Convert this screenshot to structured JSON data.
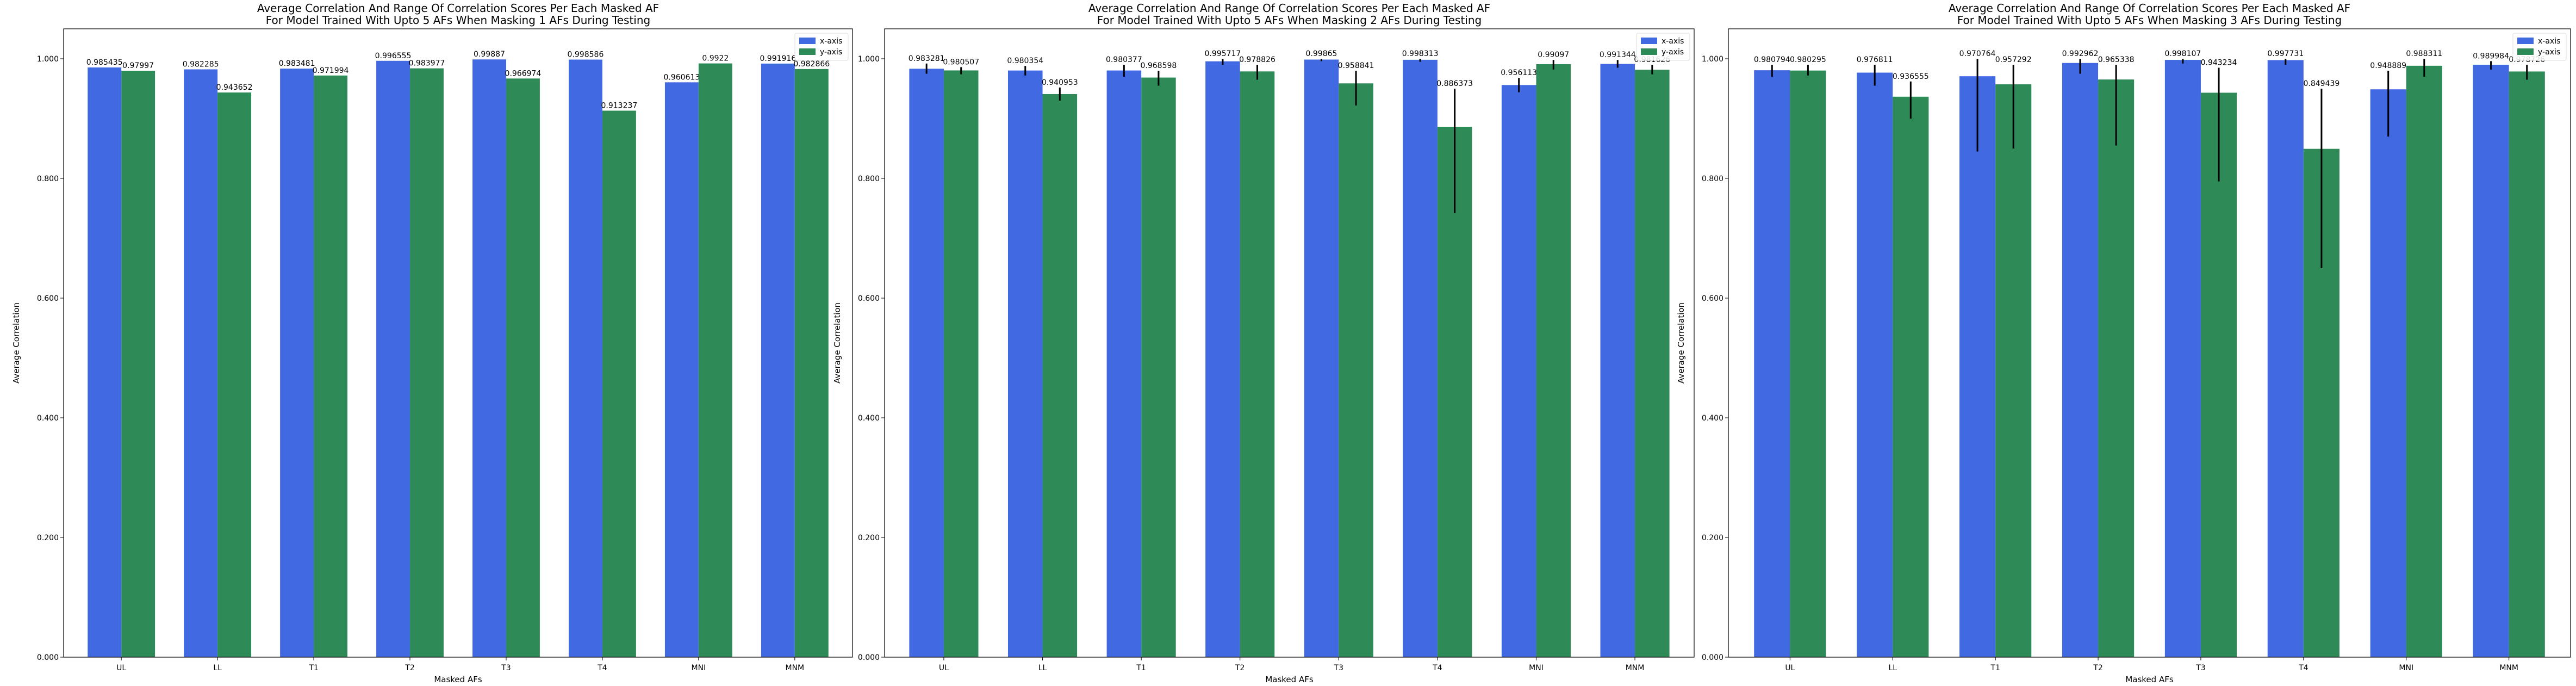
{
  "chart_data": [
    {
      "type": "bar",
      "title": [
        "Average Correlation And Range Of Correlation Scores Per Each Masked AF",
        "For Model Trained With Upto 5 AFs When Masking 1 AFs During Testing"
      ],
      "xlabel": "Masked AFs",
      "ylabel": "Average Correlation",
      "ylim": [
        0,
        1.05
      ],
      "yticks": [
        "0.000",
        "0.200",
        "0.400",
        "0.600",
        "0.800",
        "1.000"
      ],
      "grid": false,
      "legend": "top-right",
      "categories": [
        "UL",
        "LL",
        "T1",
        "T2",
        "T3",
        "T4",
        "MNI",
        "MNM"
      ],
      "series": [
        {
          "name": "x-axis",
          "color": "#4169e1",
          "values": [
            0.985435,
            0.982285,
            0.983481,
            0.996555,
            0.99887,
            0.998586,
            0.960613,
            0.991916
          ],
          "labels": [
            "0.985435",
            "0.982285",
            "0.983481",
            "0.996555",
            "0.99887",
            "0.998586",
            "0.960613",
            "0.991916"
          ],
          "err": [
            [
              0,
              0
            ],
            [
              0,
              0
            ],
            [
              0,
              0
            ],
            [
              0,
              0
            ],
            [
              0,
              0
            ],
            [
              0,
              0
            ],
            [
              0,
              0
            ],
            [
              0,
              0
            ]
          ]
        },
        {
          "name": "y-axis",
          "color": "#2e8b57",
          "values": [
            0.97997,
            0.943652,
            0.971994,
            0.983977,
            0.966974,
            0.913237,
            0.9922,
            0.982866
          ],
          "labels": [
            "0.97997",
            "0.943652",
            "0.971994",
            "0.983977",
            "0.966974",
            "0.913237",
            "0.9922",
            "0.982866"
          ],
          "err": [
            [
              0,
              0
            ],
            [
              0,
              0
            ],
            [
              0,
              0
            ],
            [
              0,
              0
            ],
            [
              0,
              0
            ],
            [
              0,
              0
            ],
            [
              0,
              0
            ],
            [
              0,
              0
            ]
          ]
        }
      ]
    },
    {
      "type": "bar",
      "title": [
        "Average Correlation And Range Of Correlation Scores Per Each Masked AF",
        "For Model Trained With Upto 5 AFs When Masking 2 AFs During Testing"
      ],
      "xlabel": "Masked AFs",
      "ylabel": "Average Correlation",
      "ylim": [
        0,
        1.05
      ],
      "yticks": [
        "0.000",
        "0.200",
        "0.400",
        "0.600",
        "0.800",
        "1.000"
      ],
      "grid": false,
      "legend": "top-right",
      "categories": [
        "UL",
        "LL",
        "T1",
        "T2",
        "T3",
        "T4",
        "MNI",
        "MNM"
      ],
      "series": [
        {
          "name": "x-axis",
          "color": "#4169e1",
          "values": [
            0.983281,
            0.980354,
            0.980377,
            0.995717,
            0.99865,
            0.998313,
            0.956113,
            0.991344
          ],
          "labels": [
            "0.983281",
            "0.980354",
            "0.980377",
            "0.995717",
            "0.99865",
            "0.998313",
            "0.956113",
            "0.991344"
          ],
          "err": [
            [
              0.975,
              0.992
            ],
            [
              0.972,
              0.988
            ],
            [
              0.97,
              0.99
            ],
            [
              0.99,
              1.0
            ],
            [
              0.996,
              1.0
            ],
            [
              0.995,
              1.0
            ],
            [
              0.944,
              0.968
            ],
            [
              0.985,
              0.998
            ]
          ]
        },
        {
          "name": "y-axis",
          "color": "#2e8b57",
          "values": [
            0.980507,
            0.940953,
            0.968598,
            0.978826,
            0.958841,
            0.886373,
            0.99097,
            0.981626
          ],
          "labels": [
            "0.980507",
            "0.940953",
            "0.968598",
            "0.978826",
            "0.958841",
            "0.886373",
            "0.99097",
            "0.981626"
          ],
          "err": [
            [
              0.974,
              0.986
            ],
            [
              0.93,
              0.952
            ],
            [
              0.955,
              0.98
            ],
            [
              0.965,
              0.99
            ],
            [
              0.922,
              0.98
            ],
            [
              0.742,
              0.95
            ],
            [
              0.982,
              0.998
            ],
            [
              0.974,
              0.99
            ]
          ]
        }
      ]
    },
    {
      "type": "bar",
      "title": [
        "Average Correlation And Range Of Correlation Scores Per Each Masked AF",
        "For Model Trained With Upto 5 AFs When Masking 3 AFs During Testing"
      ],
      "xlabel": "Masked AFs",
      "ylabel": "Average Correlation",
      "ylim": [
        0,
        1.05
      ],
      "yticks": [
        "0.000",
        "0.200",
        "0.400",
        "0.600",
        "0.800",
        "1.000"
      ],
      "grid": false,
      "legend": "top-right",
      "categories": [
        "UL",
        "LL",
        "T1",
        "T2",
        "T3",
        "T4",
        "MNI",
        "MNM"
      ],
      "series": [
        {
          "name": "x-axis",
          "color": "#4169e1",
          "values": [
            0.980794,
            0.976811,
            0.970764,
            0.992962,
            0.998107,
            0.997731,
            0.948889,
            0.989984
          ],
          "labels": [
            "0.980794",
            "0.976811",
            "0.970764",
            "0.992962",
            "0.998107",
            "0.997731",
            "0.948889",
            "0.989984"
          ],
          "err": [
            [
              0.97,
              0.99
            ],
            [
              0.955,
              0.99
            ],
            [
              0.845,
              1.0
            ],
            [
              0.975,
              1.0
            ],
            [
              0.992,
              1.0
            ],
            [
              0.99,
              1.0
            ],
            [
              0.87,
              0.98
            ],
            [
              0.982,
              0.996
            ]
          ]
        },
        {
          "name": "y-axis",
          "color": "#2e8b57",
          "values": [
            0.980295,
            0.936555,
            0.957292,
            0.965338,
            0.943234,
            0.849439,
            0.988311,
            0.978726
          ],
          "labels": [
            "0.980295",
            "0.936555",
            "0.957292",
            "0.965338",
            "0.943234",
            "0.849439",
            "0.988311",
            "0.978726"
          ],
          "err": [
            [
              0.972,
              0.99
            ],
            [
              0.9,
              0.962
            ],
            [
              0.85,
              0.99
            ],
            [
              0.855,
              0.99
            ],
            [
              0.795,
              0.985
            ],
            [
              0.65,
              0.95
            ],
            [
              0.97,
              1.0
            ],
            [
              0.965,
              0.99
            ]
          ]
        }
      ]
    }
  ]
}
